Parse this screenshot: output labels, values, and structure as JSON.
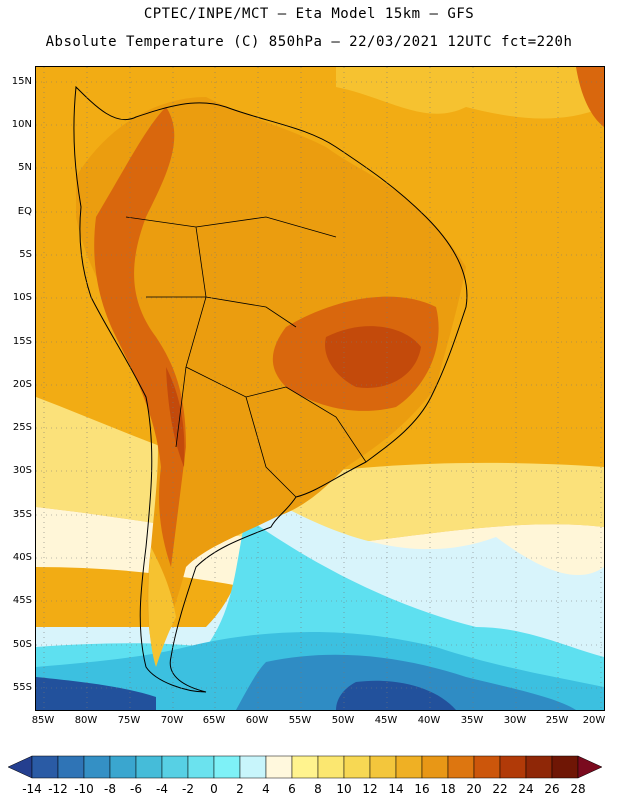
{
  "header": {
    "line1": "CPTEC/INPE/MCT  –  Eta Model 15km – GFS",
    "line2": "Absolute Temperature (C) 850hPa – 22/03/2021 12UTC fct=220h"
  },
  "map": {
    "lat_labels": [
      "15N",
      "10N",
      "5N",
      "EQ",
      "5S",
      "10S",
      "15S",
      "20S",
      "25S",
      "30S",
      "35S",
      "40S",
      "45S",
      "50S",
      "55S"
    ],
    "lon_labels": [
      "85W",
      "80W",
      "75W",
      "70W",
      "65W",
      "60W",
      "55W",
      "50W",
      "45W",
      "40W",
      "35W",
      "30W",
      "25W",
      "20W"
    ],
    "colors": {
      "ocean_north": "#f2ac14",
      "tropics": "#eb9d0f",
      "hot": "#d9670d",
      "very_hot": "#c34a0b",
      "warm_band": "#f6c230",
      "mild": "#fbe17a",
      "cool": "#fff6d8",
      "cold_light": "#d8f4fb",
      "cold": "#5ee0f0",
      "colder": "#3cc0e0",
      "cold_deep": "#2f8cc4",
      "coldest": "#22519c"
    }
  },
  "legend": {
    "labels": [
      "-14",
      "-12",
      "-10",
      "-8",
      "-6",
      "-4",
      "-2",
      "0",
      "2",
      "4",
      "6",
      "8",
      "10",
      "12",
      "14",
      "16",
      "18",
      "20",
      "22",
      "24",
      "26",
      "28"
    ],
    "colors": [
      "#243f8f",
      "#2a5ba5",
      "#2f74b6",
      "#3490c5",
      "#3aa6cf",
      "#45bcd9",
      "#57d0e4",
      "#6be2ee",
      "#7ef1f7",
      "#c8f5fb",
      "#fff8dd",
      "#fff38e",
      "#fbe770",
      "#f7d853",
      "#f3c63c",
      "#efb024",
      "#e89716",
      "#dd7610",
      "#cc560b",
      "#b13a08",
      "#8f2707",
      "#6f1605",
      "#7a0a1e"
    ]
  }
}
